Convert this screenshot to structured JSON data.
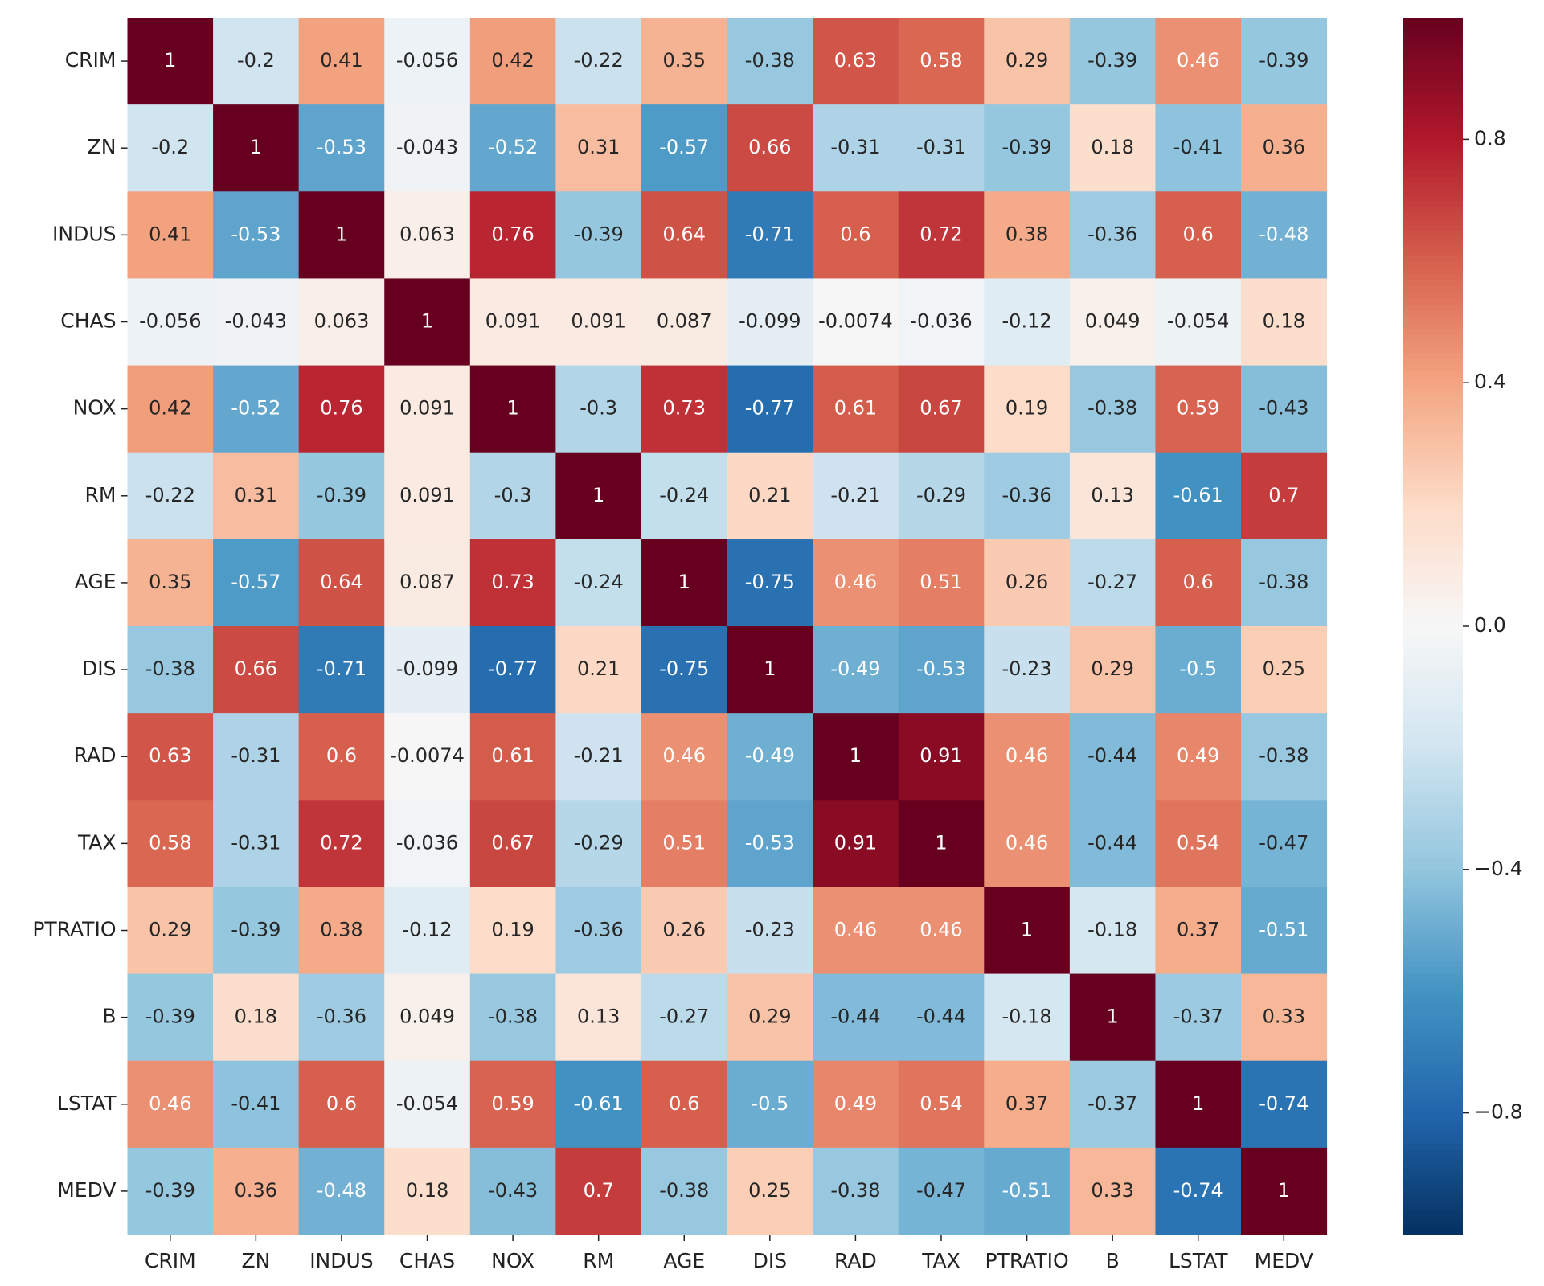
{
  "chart_data": {
    "type": "heatmap",
    "x_categories": [
      "CRIM",
      "ZN",
      "INDUS",
      "CHAS",
      "NOX",
      "RM",
      "AGE",
      "DIS",
      "RAD",
      "TAX",
      "PTRATIO",
      "B",
      "LSTAT",
      "MEDV"
    ],
    "y_categories": [
      "CRIM",
      "ZN",
      "INDUS",
      "CHAS",
      "NOX",
      "RM",
      "AGE",
      "DIS",
      "RAD",
      "TAX",
      "PTRATIO",
      "B",
      "LSTAT",
      "MEDV"
    ],
    "values": [
      [
        1,
        -0.2,
        0.41,
        -0.056,
        0.42,
        -0.22,
        0.35,
        -0.38,
        0.63,
        0.58,
        0.29,
        -0.39,
        0.46,
        -0.39
      ],
      [
        -0.2,
        1,
        -0.53,
        -0.043,
        -0.52,
        0.31,
        -0.57,
        0.66,
        -0.31,
        -0.31,
        -0.39,
        0.18,
        -0.41,
        0.36
      ],
      [
        0.41,
        -0.53,
        1,
        0.063,
        0.76,
        -0.39,
        0.64,
        -0.71,
        0.6,
        0.72,
        0.38,
        -0.36,
        0.6,
        -0.48
      ],
      [
        -0.056,
        -0.043,
        0.063,
        1,
        0.091,
        0.091,
        0.087,
        -0.099,
        -0.0074,
        -0.036,
        -0.12,
        0.049,
        -0.054,
        0.18
      ],
      [
        0.42,
        -0.52,
        0.76,
        0.091,
        1,
        -0.3,
        0.73,
        -0.77,
        0.61,
        0.67,
        0.19,
        -0.38,
        0.59,
        -0.43
      ],
      [
        -0.22,
        0.31,
        -0.39,
        0.091,
        -0.3,
        1,
        -0.24,
        0.21,
        -0.21,
        -0.29,
        -0.36,
        0.13,
        -0.61,
        0.7
      ],
      [
        0.35,
        -0.57,
        0.64,
        0.087,
        0.73,
        -0.24,
        1,
        -0.75,
        0.46,
        0.51,
        0.26,
        -0.27,
        0.6,
        -0.38
      ],
      [
        -0.38,
        0.66,
        -0.71,
        -0.099,
        -0.77,
        0.21,
        -0.75,
        1,
        -0.49,
        -0.53,
        -0.23,
        0.29,
        -0.5,
        0.25
      ],
      [
        0.63,
        -0.31,
        0.6,
        -0.0074,
        0.61,
        -0.21,
        0.46,
        -0.49,
        1,
        0.91,
        0.46,
        -0.44,
        0.49,
        -0.38
      ],
      [
        0.58,
        -0.31,
        0.72,
        -0.036,
        0.67,
        -0.29,
        0.51,
        -0.53,
        0.91,
        1,
        0.46,
        -0.44,
        0.54,
        -0.47
      ],
      [
        0.29,
        -0.39,
        0.38,
        -0.12,
        0.19,
        -0.36,
        0.26,
        -0.23,
        0.46,
        0.46,
        1,
        -0.18,
        0.37,
        -0.51
      ],
      [
        -0.39,
        0.18,
        -0.36,
        0.049,
        -0.38,
        0.13,
        -0.27,
        0.29,
        -0.44,
        -0.44,
        -0.18,
        1,
        -0.37,
        0.33
      ],
      [
        0.46,
        -0.41,
        0.6,
        -0.054,
        0.59,
        -0.61,
        0.6,
        -0.5,
        0.49,
        0.54,
        0.37,
        -0.37,
        1,
        -0.74
      ],
      [
        -0.39,
        0.36,
        -0.48,
        0.18,
        -0.43,
        0.7,
        -0.38,
        0.25,
        -0.38,
        -0.47,
        -0.51,
        0.33,
        -0.74,
        1
      ]
    ],
    "colormap": "RdBu_r",
    "clim": [
      -1,
      1
    ],
    "cticks": [
      {
        "value": -0.8,
        "label": "−0.8"
      },
      {
        "value": -0.4,
        "label": "−0.4"
      },
      {
        "value": 0,
        "label": "0.0"
      },
      0.4,
      0.8
    ]
  }
}
